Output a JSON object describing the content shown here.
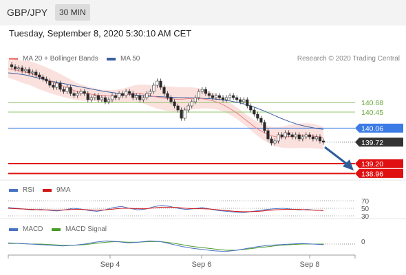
{
  "header": {
    "symbol": "GBP/JPY",
    "timeframe": "30 MIN"
  },
  "datetime": "Tuesday, September 8, 2020 5:30:10 AM CET",
  "legend": {
    "ma20_label": "MA 20 + Bollinger Bands",
    "ma50_label": "MA 50",
    "credit": "Research © 2020 Trading Central",
    "rsi_label": "RSI",
    "rsi_ma_label": "9MA",
    "macd_label": "MACD",
    "macd_signal_label": "MACD Signal"
  },
  "colors": {
    "ma20": "#f08080",
    "ma50": "#3a5fa0",
    "band_fill": "#fbe1de",
    "candle_up": "#ffffff",
    "candle_down": "#2a2a2a",
    "support": "#e01010",
    "resistance": "#3b7be6",
    "pivot_green": "#8fc46a",
    "current_price": "#333333",
    "rsi": "#4a72c4",
    "rsi_ma": "#d01818",
    "macd": "#4a72c4",
    "macd_signal": "#4a9a2a",
    "arrow": "#2d5d9a"
  },
  "chart_data": {
    "type": "candlestick",
    "price_axis": {
      "min": 138.8,
      "max": 141.5
    },
    "x_axis_ticks": [
      "Sep 4",
      "Sep 6",
      "Sep 8"
    ],
    "levels": [
      {
        "value": 140.68,
        "label": "140.68",
        "kind": "green"
      },
      {
        "value": 140.45,
        "label": "140.45",
        "kind": "green"
      },
      {
        "value": 140.06,
        "label": "140.06",
        "kind": "resistance"
      },
      {
        "value": 139.72,
        "label": "139.72",
        "kind": "current"
      },
      {
        "value": 139.2,
        "label": "139.20",
        "kind": "support"
      },
      {
        "value": 138.96,
        "label": "138.96",
        "kind": "support"
      }
    ],
    "closes": [
      141.6,
      141.55,
      141.5,
      141.52,
      141.45,
      141.48,
      141.4,
      141.42,
      141.35,
      141.3,
      141.25,
      141.2,
      141.1,
      141.05,
      141.15,
      141.0,
      140.95,
      141.05,
      140.9,
      140.85,
      140.9,
      140.95,
      140.9,
      140.75,
      140.8,
      140.85,
      140.75,
      140.8,
      140.7,
      140.75,
      140.85,
      140.8,
      140.9,
      140.85,
      140.95,
      140.9,
      140.8,
      140.85,
      140.75,
      140.8,
      140.9,
      140.95,
      141.1,
      141.2,
      141.05,
      140.9,
      140.8,
      140.7,
      140.6,
      140.5,
      140.3,
      140.5,
      140.6,
      140.7,
      140.8,
      140.95,
      141.0,
      140.9,
      140.85,
      140.8,
      140.85,
      140.8,
      140.75,
      140.8,
      140.85,
      140.8,
      140.75,
      140.7,
      140.75,
      140.6,
      140.5,
      140.4,
      140.3,
      140.2,
      140.0,
      139.8,
      139.7,
      139.75,
      139.9,
      139.85,
      139.95,
      139.9,
      139.85,
      139.9,
      139.8,
      139.85,
      139.9,
      139.85,
      139.8,
      139.85,
      139.75,
      139.72
    ],
    "ma20": [
      141.5,
      141.48,
      141.45,
      141.42,
      141.4,
      141.35,
      141.3,
      141.25,
      141.2,
      141.15,
      141.1,
      141.05,
      141.0,
      140.95,
      140.92,
      140.9,
      140.88,
      140.86,
      140.85,
      140.84,
      140.84,
      140.85,
      140.86,
      140.88,
      140.9,
      140.9,
      140.88,
      140.85,
      140.82,
      140.8,
      140.78,
      140.77,
      140.76,
      140.76,
      140.77,
      140.78,
      140.78,
      140.77,
      140.75,
      140.72,
      140.68,
      140.62,
      140.55,
      140.47,
      140.38,
      140.28,
      140.18,
      140.08,
      140.0,
      139.93,
      139.88,
      139.85,
      139.84,
      139.85,
      139.86,
      139.87,
      139.88,
      139.88,
      139.87,
      139.85,
      139.82
    ],
    "ma50": [
      141.4,
      141.38,
      141.35,
      141.3,
      141.25,
      141.2,
      141.16,
      141.12,
      141.08,
      141.04,
      141.0,
      140.96,
      140.93,
      140.9,
      140.88,
      140.86,
      140.84,
      140.83,
      140.82,
      140.81,
      140.8,
      140.8,
      140.79,
      140.78,
      140.77,
      140.75,
      140.72,
      140.68,
      140.63,
      140.56,
      140.48,
      140.39,
      140.3,
      140.22,
      140.15,
      140.1,
      140.06,
      140.03
    ],
    "rsi": [
      52,
      50,
      48,
      46,
      47,
      45,
      43,
      46,
      50,
      48,
      44,
      42,
      46,
      52,
      55,
      50,
      46,
      48,
      54,
      58,
      55,
      50,
      47,
      49,
      52,
      48,
      44,
      42,
      40,
      38,
      41,
      44,
      47,
      49,
      50,
      48,
      46,
      47,
      45,
      44
    ],
    "rsi_ma": [
      50,
      49,
      48,
      47,
      46,
      46,
      45,
      46,
      47,
      47,
      46,
      45,
      46,
      48,
      50,
      50,
      49,
      49,
      51,
      53,
      53,
      52,
      50,
      49,
      49,
      48,
      46,
      44,
      42,
      41,
      41,
      42,
      44,
      46,
      47,
      47,
      47,
      46,
      45,
      44
    ],
    "macd": [
      0.02,
      0.01,
      0.0,
      -0.01,
      -0.02,
      -0.03,
      -0.02,
      0.0,
      0.03,
      0.05,
      0.04,
      0.02,
      0.03,
      0.05,
      0.04,
      0.0,
      -0.04,
      -0.07,
      -0.09,
      -0.11,
      -0.12,
      -0.1,
      -0.07,
      -0.04,
      -0.02,
      -0.01,
      0.0,
      0.01,
      0.0,
      -0.01
    ],
    "macd_signal": [
      0.01,
      0.01,
      0.0,
      0.0,
      -0.01,
      -0.02,
      -0.02,
      -0.01,
      0.01,
      0.03,
      0.04,
      0.03,
      0.03,
      0.04,
      0.04,
      0.02,
      -0.01,
      -0.04,
      -0.06,
      -0.08,
      -0.1,
      -0.1,
      -0.08,
      -0.06,
      -0.04,
      -0.02,
      -0.01,
      0.0,
      0.0,
      0.0
    ],
    "rsi_levels": [
      "70",
      "50",
      "30"
    ],
    "macd_zero_label": "0"
  }
}
